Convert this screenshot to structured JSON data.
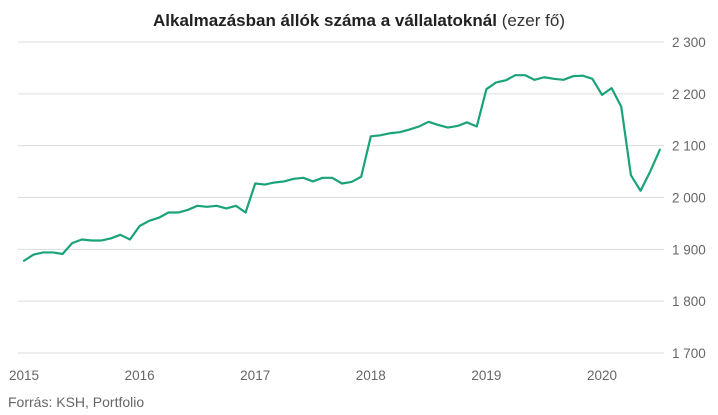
{
  "chart_data": {
    "type": "line",
    "title_bold": "Alkalmazásban állók száma a vállalatoknál",
    "title_unit": "(ezer fő)",
    "xlabel": "",
    "ylabel": "",
    "ylim": [
      1700,
      2300
    ],
    "y_ticks": [
      1700,
      1800,
      1900,
      2000,
      2100,
      2200,
      2300
    ],
    "y_tick_labels": [
      "1 700",
      "1 800",
      "1 900",
      "2 000",
      "2 100",
      "2 200",
      "2 300"
    ],
    "xlim": [
      2015,
      2020.5
    ],
    "x_ticks": [
      2015,
      2016,
      2017,
      2018,
      2019,
      2020
    ],
    "x_tick_labels": [
      "2015",
      "2016",
      "2017",
      "2018",
      "2019",
      "2020"
    ],
    "grid": "horizontal",
    "legend": "none",
    "line_color": "#1aa37a",
    "series": [
      {
        "x": [
          "2015-01",
          "2015-02",
          "2015-03",
          "2015-04",
          "2015-05",
          "2015-06",
          "2015-07",
          "2015-08",
          "2015-09",
          "2015-10",
          "2015-11",
          "2015-12",
          "2016-01",
          "2016-02",
          "2016-03",
          "2016-04",
          "2016-05",
          "2016-06",
          "2016-07",
          "2016-08",
          "2016-09",
          "2016-10",
          "2016-11",
          "2016-12",
          "2017-01",
          "2017-02",
          "2017-03",
          "2017-04",
          "2017-05",
          "2017-06",
          "2017-07",
          "2017-08",
          "2017-09",
          "2017-10",
          "2017-11",
          "2017-12",
          "2018-01",
          "2018-02",
          "2018-03",
          "2018-04",
          "2018-05",
          "2018-06",
          "2018-07",
          "2018-08",
          "2018-09",
          "2018-10",
          "2018-11",
          "2018-12",
          "2019-01",
          "2019-02",
          "2019-03",
          "2019-04",
          "2019-05",
          "2019-06",
          "2019-07",
          "2019-08",
          "2019-09",
          "2019-10",
          "2019-11",
          "2019-12",
          "2020-01",
          "2020-02",
          "2020-03",
          "2020-04",
          "2020-05",
          "2020-06",
          "2020-07"
        ],
        "values": [
          1878,
          1890,
          1894,
          1894,
          1891,
          1912,
          1919,
          1917,
          1917,
          1921,
          1928,
          1919,
          1945,
          1955,
          1961,
          1971,
          1971,
          1976,
          1984,
          1982,
          1984,
          1979,
          1984,
          1971,
          2027,
          2025,
          2029,
          2031,
          2036,
          2038,
          2031,
          2038,
          2038,
          2027,
          2030,
          2040,
          2118,
          2120,
          2124,
          2126,
          2131,
          2137,
          2146,
          2140,
          2135,
          2138,
          2145,
          2137,
          2209,
          2222,
          2226,
          2236,
          2236,
          2227,
          2232,
          2229,
          2227,
          2234,
          2235,
          2229,
          2198,
          2211,
          2175,
          2043,
          2013,
          2050,
          2092
        ]
      }
    ]
  },
  "source": "Forrás: KSH, Portfolio"
}
